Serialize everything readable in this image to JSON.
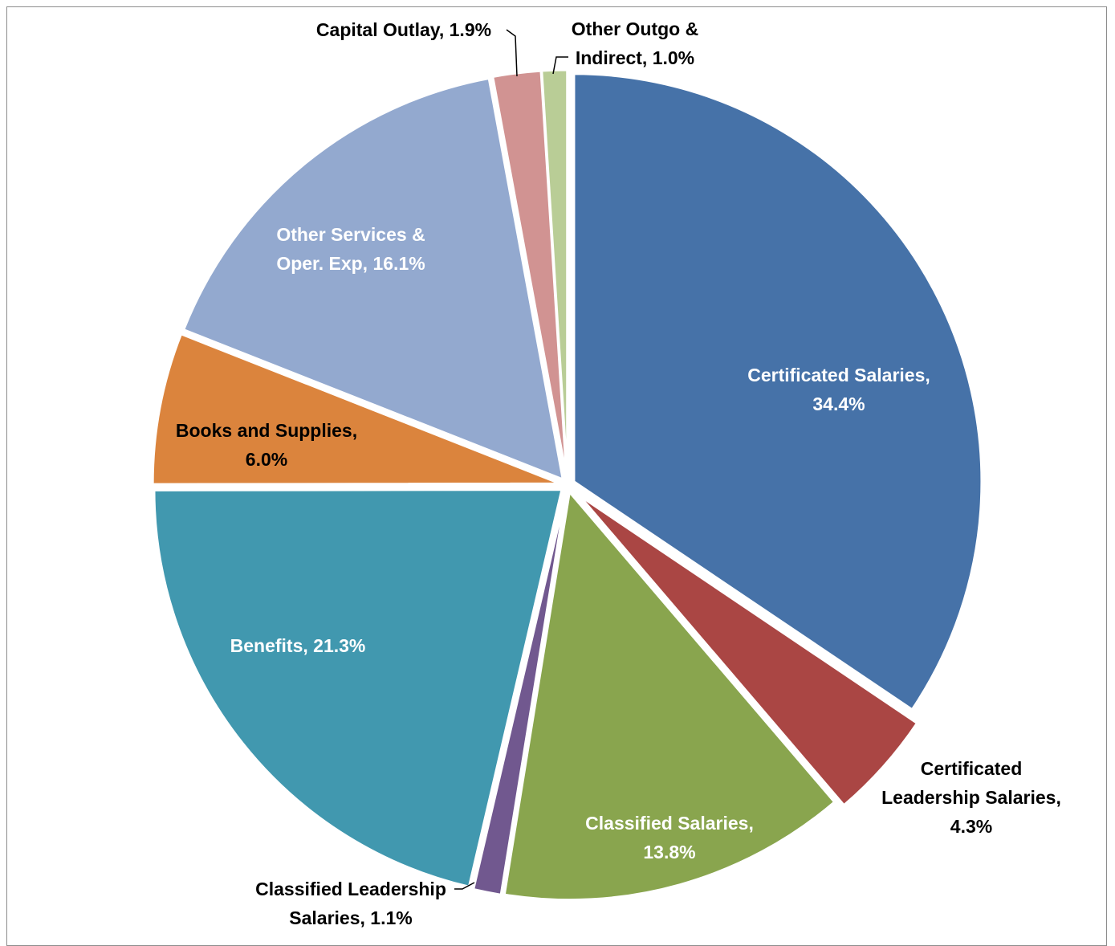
{
  "chart_data": {
    "type": "pie",
    "title": "",
    "slices": [
      {
        "name": "Certificated Salaries",
        "value": 34.4,
        "color": "#4672a8",
        "label_lines": [
          "Certificated Salaries,",
          "34.4%"
        ]
      },
      {
        "name": "Certificated Leadership Salaries",
        "value": 4.3,
        "color": "#aa4644",
        "label_lines": [
          "Certificated",
          "Leadership Salaries,",
          "4.3%"
        ]
      },
      {
        "name": "Classified Salaries",
        "value": 13.8,
        "color": "#89a54e",
        "label_lines": [
          "Classified Salaries,",
          "13.8%"
        ]
      },
      {
        "name": "Classified Leadership Salaries",
        "value": 1.1,
        "color": "#71588f",
        "label_lines": [
          "Classified Leadership",
          "Salaries, 1.1%"
        ]
      },
      {
        "name": "Benefits",
        "value": 21.3,
        "color": "#4198af",
        "label_lines": [
          "Benefits, 21.3%"
        ]
      },
      {
        "name": "Books and Supplies",
        "value": 6.0,
        "color": "#db843d",
        "label_lines": [
          "Books and Supplies,",
          "6.0%"
        ]
      },
      {
        "name": "Other Services & Oper. Exp",
        "value": 16.1,
        "color": "#93a9cf",
        "label_lines": [
          "Other Services &",
          "Oper. Exp, 16.1%"
        ]
      },
      {
        "name": "Capital Outlay",
        "value": 1.9,
        "color": "#d19392",
        "label_lines": [
          "Capital Outlay, 1.9%"
        ]
      },
      {
        "name": "Other Outgo & Indirect",
        "value": 1.0,
        "color": "#b9cd96",
        "label_lines": [
          "Other Outgo &",
          "Indirect, 1.0%"
        ]
      }
    ],
    "legend": "none",
    "data_labels": "category-and-percent"
  }
}
